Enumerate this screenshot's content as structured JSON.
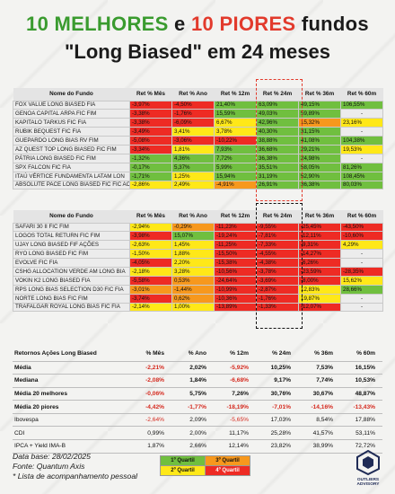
{
  "title": {
    "part1": "10 MELHORES",
    "part2": " e ",
    "part3": "10 PIORES",
    "part4": " fundos",
    "line2": "\"Long Biased\" em 24 meses"
  },
  "headers": [
    "Nome do Fundo",
    "Ret % Mês",
    "Ret % Ano",
    "Ret % 12m",
    "Ret % 24m",
    "Ret % 36m",
    "Ret % 60m"
  ],
  "best": [
    {
      "name": "FOX VALUE LONG BIASED FIA",
      "vals": [
        "-3,97%",
        "-4,50%",
        "21,40%",
        "63,09%",
        "49,15%",
        "106,55%"
      ],
      "q": [
        4,
        4,
        1,
        1,
        1,
        1
      ]
    },
    {
      "name": "GENOA CAPITAL ARPA FIC FIM",
      "vals": [
        "-3,38%",
        "-1,76%",
        "15,59%",
        "49,03%",
        "59,89%",
        "-"
      ],
      "q": [
        4,
        4,
        1,
        1,
        1,
        0
      ]
    },
    {
      "name": "KAPITALO TARKUS FIC FIA",
      "vals": [
        "-3,38%",
        "-6,09%",
        "6,67%",
        "42,96%",
        "15,32%",
        "23,16%"
      ],
      "q": [
        4,
        4,
        2,
        1,
        3,
        2
      ]
    },
    {
      "name": "RUBIK BEQUEST FIC FIA",
      "vals": [
        "-3,49%",
        "3,41%",
        "3,78%",
        "40,30%",
        "31,15%",
        "-"
      ],
      "q": [
        4,
        2,
        2,
        1,
        1,
        0
      ]
    },
    {
      "name": "GUEPARDO LONG BIAS RV FIM",
      "vals": [
        "-5,08%",
        "-3,06%",
        "-10,22%",
        "38,88%",
        "41,08%",
        "104,38%"
      ],
      "q": [
        4,
        4,
        4,
        1,
        1,
        1
      ]
    },
    {
      "name": "AZ QUEST TOP LONG BIASED FIC FIM",
      "vals": [
        "-3,34%",
        "1,81%",
        "7,93%",
        "36,68%",
        "29,21%",
        "19,53%"
      ],
      "q": [
        4,
        2,
        1,
        1,
        1,
        2
      ]
    },
    {
      "name": "PÁTRIA LONG BIASED FIC FIM",
      "vals": [
        "-1,32%",
        "4,36%",
        "7,72%",
        "36,38%",
        "24,98%",
        "-"
      ],
      "q": [
        1,
        1,
        1,
        1,
        1,
        0
      ]
    },
    {
      "name": "SPX FALCON FIC FIA",
      "vals": [
        "-0,17%",
        "5,37%",
        "5,99%",
        "35,51%",
        "58,05%",
        "81,26%"
      ],
      "q": [
        1,
        1,
        1,
        1,
        1,
        1
      ]
    },
    {
      "name": "ITAÚ VÉRTICE FUNDAMENTA LATAM LON",
      "vals": [
        "-1,71%",
        "1,25%",
        "15,94%",
        "31,19%",
        "52,90%",
        "108,45%"
      ],
      "q": [
        1,
        2,
        1,
        1,
        1,
        1
      ]
    },
    {
      "name": "ABSOLUTE PACE LONG BIASED FIC FIC AC",
      "vals": [
        "-2,86%",
        "2,49%",
        "-4,91%",
        "26,91%",
        "36,38%",
        "80,03%"
      ],
      "q": [
        2,
        2,
        3,
        1,
        1,
        1
      ]
    }
  ],
  "worst": [
    {
      "name": "SAFARI 30 II FIC FIM",
      "vals": [
        "-2,94%",
        "-0,29%",
        "-11,23%",
        "-9,55%",
        "-25,45%",
        "-43,50%"
      ],
      "q": [
        2,
        3,
        4,
        4,
        4,
        4
      ]
    },
    {
      "name": "LOGOS TOTAL RETURN FIC FIM",
      "vals": [
        "-3,98%",
        "15,07%",
        "-19,24%",
        "-7,81%",
        "-12,11%",
        "-10,60%"
      ],
      "q": [
        4,
        1,
        4,
        4,
        4,
        4
      ]
    },
    {
      "name": "UJAY LONG BIASED FIF AÇÕES",
      "vals": [
        "-2,63%",
        "1,45%",
        "-11,25%",
        "-7,33%",
        "-9,31%",
        "4,29%"
      ],
      "q": [
        2,
        2,
        4,
        4,
        4,
        2
      ]
    },
    {
      "name": "RYO LONG BIASED FIC FIM",
      "vals": [
        "-1,50%",
        "1,88%",
        "-15,50%",
        "-4,55%",
        "-14,27%",
        "-"
      ],
      "q": [
        2,
        2,
        4,
        4,
        4,
        0
      ]
    },
    {
      "name": "EVOLVE FIC FIA",
      "vals": [
        "-4,05%",
        "2,20%",
        "-15,38%",
        "-4,38%",
        "-6,26%",
        "-"
      ],
      "q": [
        4,
        2,
        4,
        4,
        4,
        0
      ]
    },
    {
      "name": "CSHG ALLOCATION VERDE AM LONG BIA",
      "vals": [
        "-2,18%",
        "3,28%",
        "-10,56%",
        "-3,78%",
        "-23,59%",
        "-28,35%"
      ],
      "q": [
        2,
        2,
        4,
        4,
        4,
        4
      ]
    },
    {
      "name": "VOKIN K2 LONG BIASED FIA",
      "vals": [
        "-5,58%",
        "0,53%",
        "-24,64%",
        "-3,69%",
        "-8,00%",
        "15,62%"
      ],
      "q": [
        4,
        3,
        4,
        4,
        4,
        2
      ]
    },
    {
      "name": "RPS LONG BIAS SELECTION D30 FIC FIA",
      "vals": [
        "-3,01%",
        "-1,44%",
        "-10,99%",
        "-2,87%",
        "12,83%",
        "28,66%"
      ],
      "q": [
        3,
        3,
        4,
        4,
        2,
        1
      ]
    },
    {
      "name": "NORTE LONG BIAS FIC FIM",
      "vals": [
        "-3,74%",
        "0,62%",
        "-10,36%",
        "-1,76%",
        "19,87%",
        "-"
      ],
      "q": [
        4,
        3,
        4,
        4,
        2,
        0
      ]
    },
    {
      "name": "TRAFALGAR ROYAL LONG BIAS FIC FIA",
      "vals": [
        "-2,14%",
        "1,00%",
        "-13,89%",
        "-1,33%",
        "-12,07%",
        "-"
      ],
      "q": [
        2,
        2,
        4,
        4,
        4,
        0
      ]
    }
  ],
  "summary": {
    "headers": [
      "Retornos Ações Long Biased",
      "% Mês",
      "% Ano",
      "% 12m",
      "% 24m",
      "% 36m",
      "% 60m"
    ],
    "rows": [
      {
        "label": "Média",
        "vals": [
          "-2,21%",
          "2,02%",
          "-5,92%",
          "10,25%",
          "7,53%",
          "16,15%"
        ],
        "bold": true
      },
      {
        "label": "Mediana",
        "vals": [
          "-2,08%",
          "1,84%",
          "-6,68%",
          "9,17%",
          "7,74%",
          "10,53%"
        ],
        "bold": true
      },
      {
        "label": "Média 20 melhores",
        "vals": [
          "-0,06%",
          "5,75%",
          "7,26%",
          "30,76%",
          "30,67%",
          "48,87%"
        ],
        "bold": true
      },
      {
        "label": "Média 20 piores",
        "vals": [
          "-4,42%",
          "-1,77%",
          "-18,19%",
          "-7,01%",
          "-14,16%",
          "-13,43%"
        ],
        "bold": true
      },
      {
        "label": "Ibovespa",
        "vals": [
          "-2,64%",
          "2,09%",
          "-5,65%",
          "17,03%",
          "8,54%",
          "17,88%"
        ],
        "bold": false
      },
      {
        "label": "CDI",
        "vals": [
          "0,99%",
          "2,00%",
          "11,17%",
          "25,28%",
          "41,57%",
          "53,11%"
        ],
        "bold": false
      },
      {
        "label": "IPCA + Yield IMA-B",
        "vals": [
          "1,87%",
          "2,66%",
          "12,14%",
          "23,82%",
          "38,99%",
          "72,72%"
        ],
        "bold": false
      }
    ]
  },
  "footer": {
    "date": "Data base: 28/02/2025",
    "source": "Fonte: Quantum Axis",
    "note": "* Lista de acompanhamento pessoal"
  },
  "legend": [
    "1º Quartil",
    "2º Quartil",
    "3º Quartil",
    "4º Quartil"
  ],
  "logo": {
    "line1": "OUTLIERS",
    "line2": "ADVISORY"
  }
}
